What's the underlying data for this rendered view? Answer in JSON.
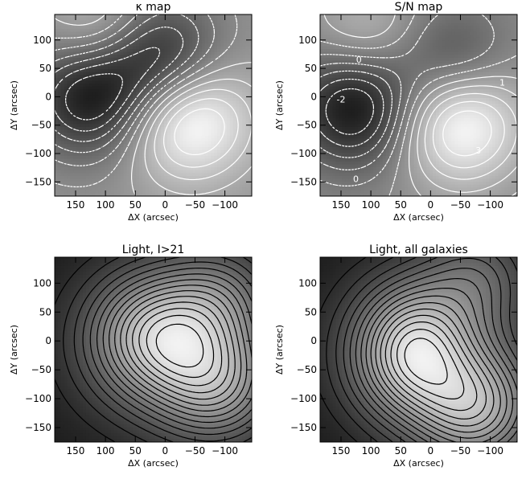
{
  "chart_data": [
    {
      "type": "heatmap",
      "title": "κ map",
      "xlabel": "ΔX (arcsec)",
      "ylabel": "ΔY (arcsec)",
      "xlim": [
        185,
        -145
      ],
      "ylim": [
        -175,
        145
      ],
      "x_ticks": [
        150,
        100,
        50,
        0,
        -50,
        -100
      ],
      "y_ticks": [
        100,
        50,
        0,
        -50,
        -100,
        -150
      ],
      "contour_color": "#ffffff",
      "negative_contours_dashed": true,
      "contour_labels": [],
      "features": [
        {
          "x": 125,
          "y": 0,
          "level": -1.0
        },
        {
          "x": 5,
          "y": 70,
          "level": -0.85
        },
        {
          "x": 110,
          "y": 115,
          "level": 0.45
        },
        {
          "x": -40,
          "y": -40,
          "level": 1.0
        }
      ]
    },
    {
      "type": "heatmap",
      "title": "S/N map",
      "xlabel": "ΔX (arcsec)",
      "ylabel": "ΔY (arcsec)",
      "xlim": [
        185,
        -145
      ],
      "ylim": [
        -175,
        145
      ],
      "x_ticks": [
        150,
        100,
        50,
        0,
        -50,
        -100
      ],
      "y_ticks": [
        100,
        50,
        0,
        -50,
        -100,
        -150
      ],
      "contour_color": "#ffffff",
      "negative_contours_dashed": true,
      "contour_labels": [
        {
          "text": "-2",
          "x": 150,
          "y": -10
        },
        {
          "text": "0",
          "x": 120,
          "y": 60
        },
        {
          "text": "1",
          "x": -120,
          "y": 20
        },
        {
          "text": "3",
          "x": -80,
          "y": -100
        },
        {
          "text": "0",
          "x": 125,
          "y": -150
        }
      ],
      "features": [
        {
          "x": 125,
          "y": -20,
          "level": -1.0
        },
        {
          "x": -40,
          "y": 70,
          "level": -0.5
        },
        {
          "x": 110,
          "y": 115,
          "level": 0.4
        },
        {
          "x": -50,
          "y": -50,
          "level": 1.0
        }
      ]
    },
    {
      "type": "heatmap",
      "title": "Light, I>21",
      "xlabel": "ΔX (arcsec)",
      "ylabel": "ΔY (arcsec)",
      "xlim": [
        185,
        -145
      ],
      "ylim": [
        -175,
        145
      ],
      "x_ticks": [
        150,
        100,
        50,
        0,
        -50,
        -100
      ],
      "y_ticks": [
        100,
        50,
        0,
        -50,
        -100,
        -150
      ],
      "contour_color": "#000000",
      "negative_contours_dashed": false,
      "contour_labels": [],
      "features": [
        {
          "x": 15,
          "y": 10,
          "level": 1.0
        },
        {
          "x": -90,
          "y": -75,
          "level": 0.9
        },
        {
          "x": -95,
          "y": 75,
          "level": 0.55
        }
      ]
    },
    {
      "type": "heatmap",
      "title": "Light, all galaxies",
      "xlabel": "ΔX (arcsec)",
      "ylabel": "ΔY (arcsec)",
      "xlim": [
        185,
        -145
      ],
      "ylim": [
        -175,
        145
      ],
      "x_ticks": [
        150,
        100,
        50,
        0,
        -50,
        -100
      ],
      "y_ticks": [
        100,
        50,
        0,
        -50,
        -100,
        -150
      ],
      "contour_color": "#000000",
      "negative_contours_dashed": false,
      "contour_labels": [],
      "features": [
        {
          "x": -75,
          "y": -115,
          "level": 1.0
        },
        {
          "x": 25,
          "y": 20,
          "level": 0.6
        },
        {
          "x": 40,
          "y": -50,
          "level": 0.55
        },
        {
          "x": -80,
          "y": 110,
          "level": 0.45
        }
      ]
    }
  ]
}
